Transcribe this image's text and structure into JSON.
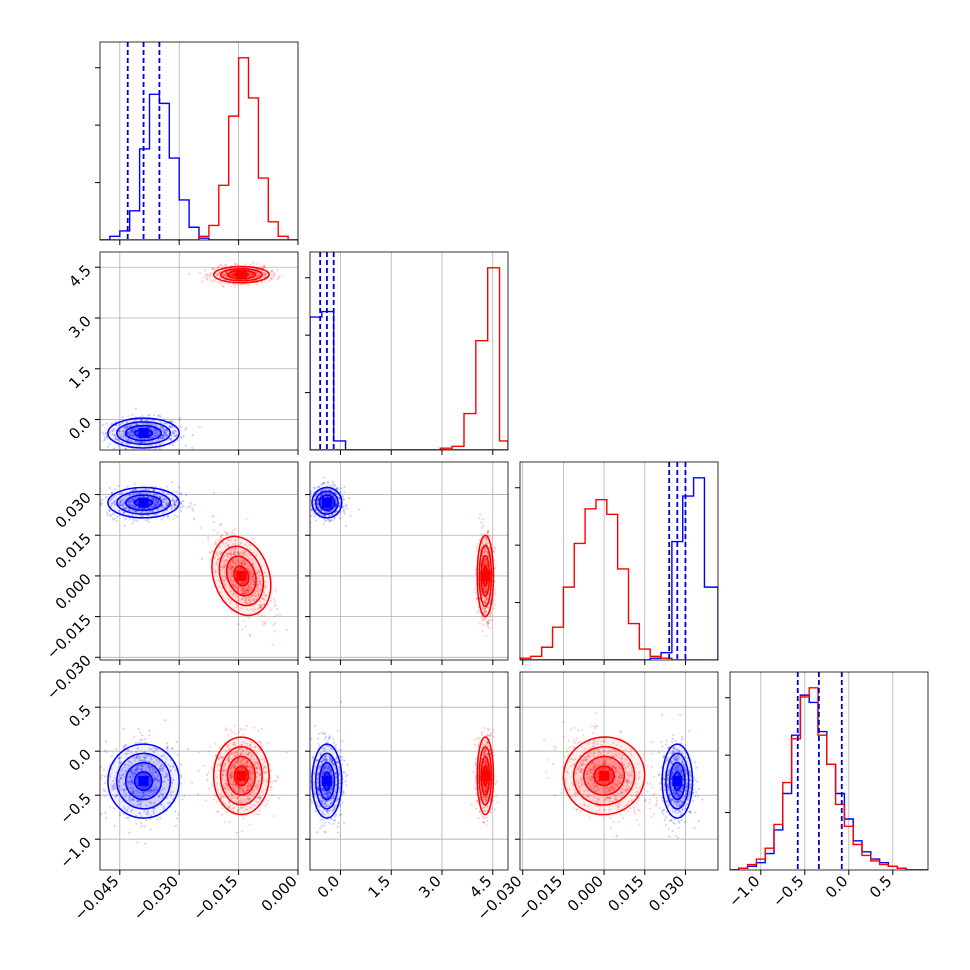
{
  "chart_data": {
    "type": "corner",
    "series": [
      {
        "name": "",
        "color": "#0000ff",
        "centers": [
          -0.039,
          -0.4,
          0.027,
          -0.34
        ],
        "spreads": [
          0.0045,
          0.22,
          0.0028,
          0.21
        ],
        "quantile_lines": {
          "p0": [
            -0.043,
            -0.035
          ],
          "p1": [
            -0.6,
            -0.2
          ],
          "p2": [
            0.024,
            0.03
          ],
          "p3": [
            -0.58,
            -0.08
          ]
        }
      },
      {
        "name": "",
        "color": "#ff0000",
        "centers": [
          -0.0143,
          4.28,
          0.0,
          -0.28
        ],
        "spreads": [
          0.0035,
          0.12,
          0.0075,
          0.22
        ]
      }
    ],
    "params": [
      {
        "range": [
          -0.05,
          0.0
        ],
        "ticks": [
          -0.045,
          -0.03,
          -0.015,
          0.0
        ],
        "tick_labels": [
          "−0.045",
          "−0.030",
          "−0.015",
          "0.000"
        ]
      },
      {
        "range": [
          -0.9,
          4.95
        ],
        "ticks": [
          0.0,
          1.5,
          3.0,
          4.5
        ],
        "tick_labels": [
          "0.0",
          "1.5",
          "3.0",
          "4.5"
        ]
      },
      {
        "range": [
          -0.031,
          0.042
        ],
        "ticks": [
          -0.03,
          -0.015,
          0.0,
          0.015,
          0.03
        ],
        "tick_labels": [
          "−0.030",
          "−0.015",
          "0.000",
          "0.015",
          "0.030"
        ]
      },
      {
        "range": [
          -1.35,
          0.9
        ],
        "ticks": [
          -1.0,
          -0.5,
          0.0,
          0.5
        ],
        "tick_labels": [
          "−1.0",
          "−0.5",
          "0.0",
          "0.5"
        ]
      }
    ],
    "histograms": [
      {
        "edges": [
          -0.05,
          -0.0475,
          -0.045,
          -0.0425,
          -0.04,
          -0.0375,
          -0.035,
          -0.0325,
          -0.03,
          -0.0275,
          -0.025,
          -0.0225,
          -0.02,
          -0.0175,
          -0.015,
          -0.0125,
          -0.01,
          -0.0075,
          -0.005,
          -0.0025,
          0.0
        ],
        "blue": [
          0,
          0.02,
          0.05,
          0.16,
          0.5,
          0.8,
          0.75,
          0.45,
          0.22,
          0.07,
          0.01,
          0,
          0,
          0,
          0,
          0,
          0,
          0,
          0,
          0
        ],
        "red": [
          0,
          0,
          0,
          0,
          0,
          0,
          0,
          0,
          0,
          0,
          0.02,
          0.08,
          0.3,
          0.68,
          1.0,
          0.78,
          0.34,
          0.1,
          0.02,
          0
        ]
      },
      {
        "edges": [
          -0.9,
          -0.55,
          -0.2,
          0.15,
          0.5,
          0.85,
          1.2,
          1.55,
          1.9,
          2.25,
          2.6,
          2.95,
          3.3,
          3.65,
          4.0,
          4.35,
          4.7,
          4.95
        ],
        "blue": [
          0.73,
          0.76,
          0.05,
          0,
          0,
          0,
          0,
          0,
          0,
          0,
          0,
          0,
          0,
          0,
          0,
          0,
          0
        ],
        "red": [
          0,
          0,
          0,
          0,
          0,
          0,
          0,
          0,
          0,
          0,
          0,
          0.01,
          0.02,
          0.2,
          0.6,
          1.0,
          0.05
        ]
      },
      {
        "edges": [
          -0.031,
          -0.027,
          -0.023,
          -0.019,
          -0.015,
          -0.011,
          -0.007,
          -0.003,
          0.001,
          0.005,
          0.009,
          0.013,
          0.017,
          0.021,
          0.025,
          0.029,
          0.033,
          0.037,
          0.042
        ],
        "blue": [
          0,
          0,
          0,
          0,
          0,
          0,
          0,
          0,
          0,
          0,
          0,
          0,
          0.01,
          0.04,
          0.65,
          0.9,
          1.0,
          0.4
        ],
        "red": [
          0.01,
          0.02,
          0.07,
          0.18,
          0.4,
          0.64,
          0.83,
          0.88,
          0.8,
          0.5,
          0.2,
          0.06,
          0.02,
          0.01,
          0,
          0,
          0,
          0
        ]
      },
      {
        "edges": [
          -1.35,
          -1.25,
          -1.15,
          -1.05,
          -0.95,
          -0.85,
          -0.75,
          -0.65,
          -0.55,
          -0.45,
          -0.35,
          -0.25,
          -0.15,
          -0.05,
          0.05,
          0.15,
          0.25,
          0.35,
          0.45,
          0.55,
          0.65,
          0.75,
          0.9
        ],
        "blue": [
          0,
          0.01,
          0.02,
          0.04,
          0.09,
          0.22,
          0.42,
          0.74,
          0.96,
          0.92,
          0.76,
          0.58,
          0.42,
          0.28,
          0.16,
          0.1,
          0.06,
          0.04,
          0.02,
          0.01,
          0,
          0
        ],
        "red": [
          0,
          0.01,
          0.03,
          0.06,
          0.12,
          0.25,
          0.48,
          0.72,
          0.95,
          1.0,
          0.74,
          0.58,
          0.36,
          0.24,
          0.14,
          0.08,
          0.05,
          0.03,
          0.02,
          0.01,
          0,
          0
        ]
      }
    ],
    "grid": true
  }
}
